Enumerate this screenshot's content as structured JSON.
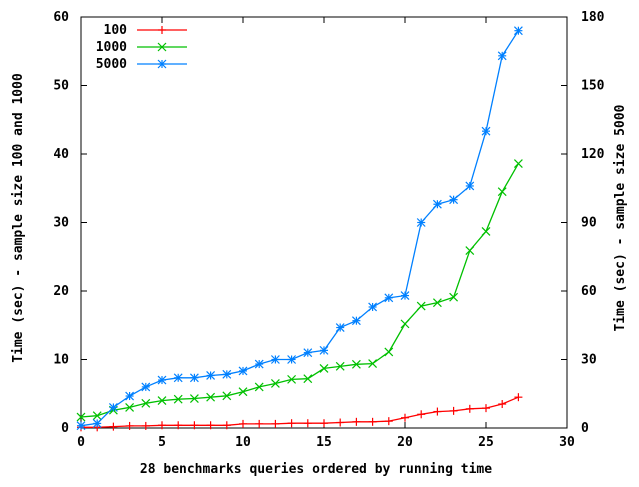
{
  "chart_data": {
    "type": "line",
    "title": "",
    "xlabel": "28 benchmarks queries ordered by running time",
    "ylabel_left": "Time (sec) - sample size 100 and 1000",
    "ylabel_right": "Time (sec) - sample size 5000",
    "xlim": [
      0,
      30
    ],
    "ylim_left": [
      0,
      60
    ],
    "ylim_right": [
      0,
      180
    ],
    "x_ticks": [
      "0",
      "5",
      "10",
      "15",
      "20",
      "25",
      "30"
    ],
    "y_left_ticks": [
      "0",
      "10",
      "20",
      "30",
      "40",
      "50",
      "60"
    ],
    "y_right_ticks": [
      "0",
      "30",
      "60",
      "90",
      "120",
      "150",
      "180"
    ],
    "grid": false,
    "legend_position": "top-left",
    "x": [
      0,
      1,
      2,
      3,
      4,
      5,
      6,
      7,
      8,
      9,
      10,
      11,
      12,
      13,
      14,
      15,
      16,
      17,
      18,
      19,
      20,
      21,
      22,
      23,
      24,
      25,
      26,
      27
    ],
    "series": [
      {
        "name": "100",
        "axis": "left",
        "color": "#ff0000",
        "marker": "plus",
        "values": [
          0.1,
          0.1,
          0.2,
          0.3,
          0.3,
          0.4,
          0.4,
          0.4,
          0.4,
          0.4,
          0.6,
          0.6,
          0.6,
          0.7,
          0.7,
          0.7,
          0.8,
          0.9,
          0.9,
          1.0,
          1.5,
          2.0,
          2.4,
          2.5,
          2.8,
          2.9,
          3.5,
          4.5
        ]
      },
      {
        "name": "1000",
        "axis": "left",
        "color": "#00c000",
        "marker": "x",
        "values": [
          1.6,
          1.8,
          2.6,
          3.0,
          3.6,
          4.0,
          4.2,
          4.3,
          4.5,
          4.7,
          5.3,
          6.0,
          6.5,
          7.1,
          7.2,
          8.7,
          9.0,
          9.3,
          9.4,
          11.1,
          15.2,
          17.8,
          18.3,
          19.1,
          25.9,
          28.7,
          34.5,
          38.6
        ]
      },
      {
        "name": "5000",
        "axis": "right",
        "color": "#0080ff",
        "marker": "star",
        "values": [
          1,
          2,
          9,
          14,
          18,
          21,
          22,
          22,
          23,
          23.5,
          25,
          28,
          30,
          30,
          33,
          34,
          44,
          47,
          53,
          57,
          58,
          90,
          98,
          100,
          106,
          130,
          163,
          174
        ]
      }
    ]
  }
}
